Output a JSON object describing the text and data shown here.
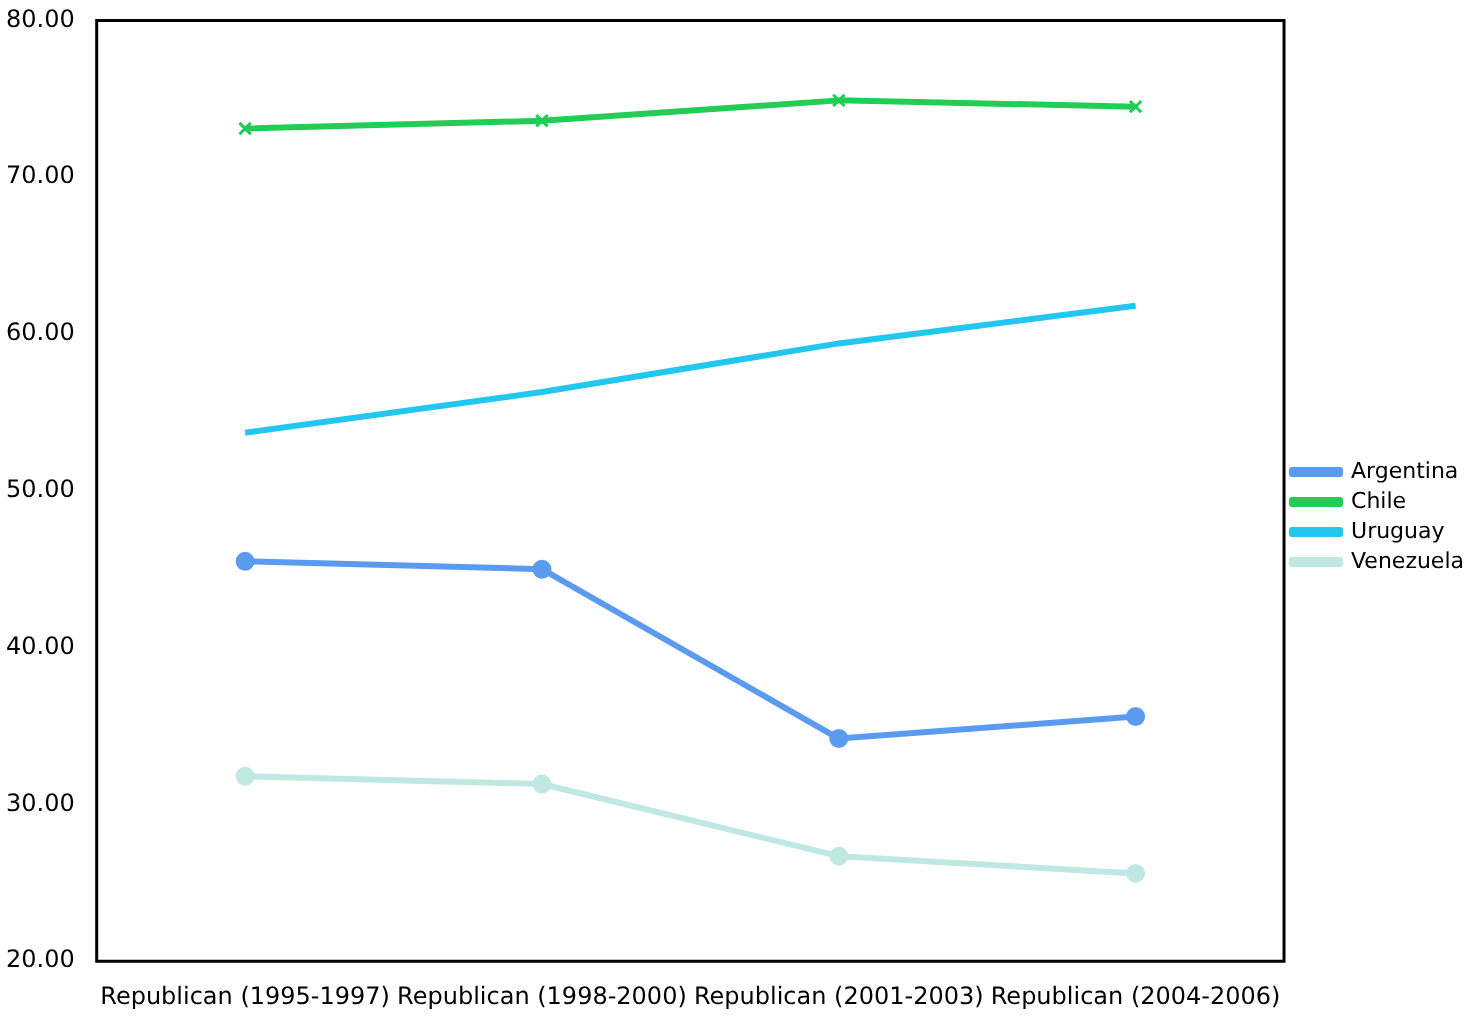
{
  "chart_data": {
    "type": "line",
    "categories": [
      "Republican (1995-1997)",
      "Republican (1998-2000)",
      "Republican (2001-2003)",
      "Republican (2004-2006)"
    ],
    "series": [
      {
        "name": "Argentina",
        "color": "#5b9bef",
        "marker": "circle",
        "values": [
          45.5,
          45.0,
          34.2,
          35.6
        ]
      },
      {
        "name": "Chile",
        "color": "#22cc55",
        "marker": "cross",
        "values": [
          73.1,
          73.6,
          74.9,
          74.5
        ]
      },
      {
        "name": "Uruguay",
        "color": "#22c6ee",
        "marker": "none",
        "values": [
          53.7,
          56.3,
          59.4,
          61.8
        ]
      },
      {
        "name": "Venezuela",
        "color": "#bfe8e2",
        "marker": "circle",
        "values": [
          31.8,
          31.3,
          26.7,
          25.6
        ]
      }
    ],
    "ylim": [
      20,
      80
    ],
    "yticks": [
      {
        "value": 20,
        "label": "20.00"
      },
      {
        "value": 30,
        "label": "30.00"
      },
      {
        "value": 40,
        "label": "40.00"
      },
      {
        "value": 50,
        "label": "50.00"
      },
      {
        "value": 60,
        "label": "60.00"
      },
      {
        "value": 70,
        "label": "70.00"
      },
      {
        "value": 80,
        "label": "80.00"
      }
    ],
    "grid": false,
    "legend": "right",
    "line_style": "solid"
  }
}
